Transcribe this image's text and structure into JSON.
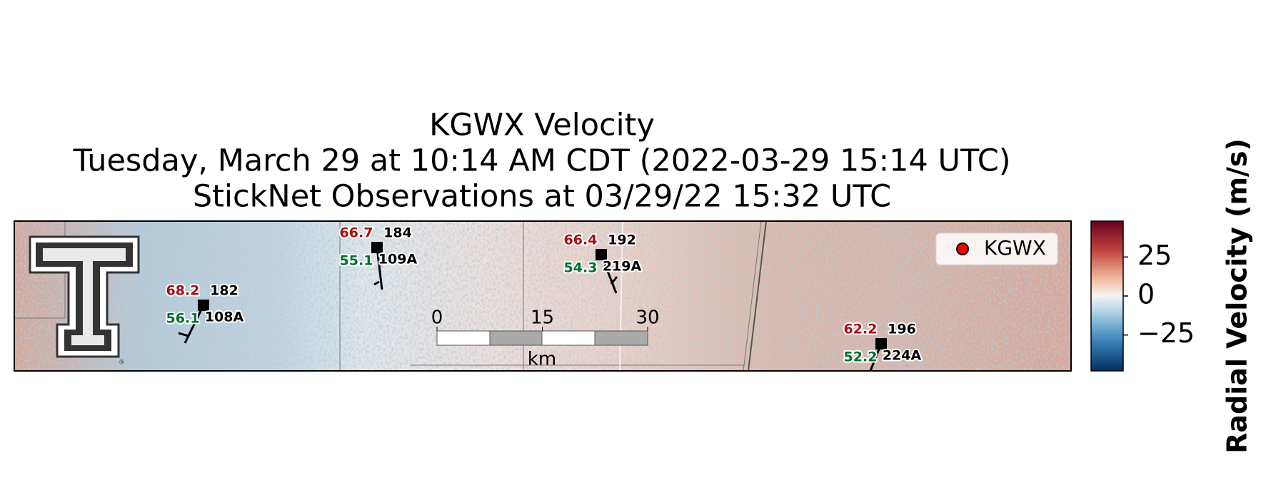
{
  "title": [
    "KGWX Velocity",
    "Tuesday, March 29 at 10:14 AM CDT (2022-03-29 15:14 UTC)",
    "StickNet Observations at 03/29/22 15:32 UTC"
  ],
  "legend": {
    "label": "KGWX"
  },
  "stations": [
    {
      "temperature": 68.2,
      "dewpoint": 56.1,
      "station": "182",
      "probe": "108A"
    },
    {
      "temperature": 66.7,
      "dewpoint": 55.1,
      "station": "184",
      "probe": "109A"
    },
    {
      "temperature": 66.4,
      "dewpoint": 54.3,
      "station": "192",
      "probe": "219A"
    },
    {
      "temperature": 62.2,
      "dewpoint": 52.2,
      "station": "196",
      "probe": "224A"
    }
  ],
  "scale_bar": {
    "ticks": [
      0,
      15,
      30
    ],
    "unit": "km"
  },
  "colorbar": {
    "label": "Radial Velocity (m/s)",
    "clim": [
      -48,
      48
    ],
    "ticks": [
      {
        "value": -25,
        "label": "−25"
      },
      0,
      25
    ]
  }
}
